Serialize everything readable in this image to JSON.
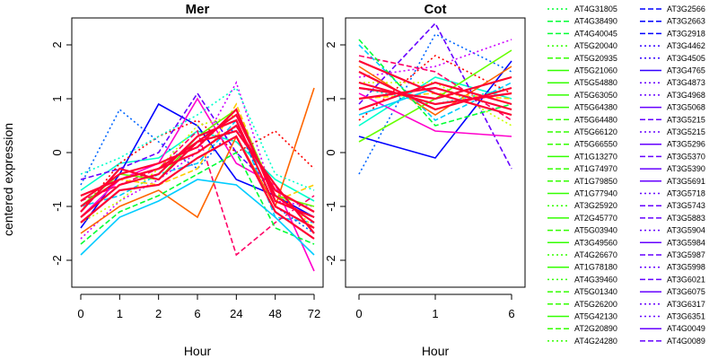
{
  "chart_data": [
    {
      "type": "line",
      "title": "Mer",
      "xlabel": "Hour",
      "ylabel": "centered expression",
      "categories": [
        "0",
        "1",
        "2",
        "6",
        "24",
        "48",
        "72"
      ],
      "yticks": [
        -2,
        -1,
        0,
        1,
        2
      ],
      "ylim": [
        -2.5,
        2.5
      ],
      "grid": false,
      "legend": "right (outside plots)",
      "palette": [
        "#ff0000",
        "#ff6600",
        "#ffcc00",
        "#ccff00",
        "#66ff00",
        "#00ff33",
        "#00ffcc",
        "#00ccff",
        "#0066ff",
        "#0000ff",
        "#6600ff",
        "#cc00ff",
        "#ff00cc",
        "#ff0066"
      ],
      "series": [
        {
          "values": [
            -1.0,
            -0.5,
            -0.3,
            0.2,
            0.7,
            -0.8,
            -1.3
          ]
        },
        {
          "values": [
            -0.9,
            -0.4,
            -0.2,
            0.1,
            0.8,
            -0.9,
            -1.2
          ]
        },
        {
          "values": [
            -1.2,
            -0.6,
            -0.4,
            0.3,
            0.6,
            -1.0,
            -1.4
          ]
        },
        {
          "values": [
            -0.8,
            -0.5,
            -0.3,
            0.0,
            0.5,
            -0.7,
            -1.1
          ]
        },
        {
          "values": [
            -1.1,
            -0.3,
            -0.5,
            0.2,
            0.4,
            -0.6,
            -1.5
          ]
        },
        {
          "values": [
            -1.3,
            -0.7,
            -0.6,
            -0.1,
            0.3,
            -1.1,
            -1.6
          ]
        },
        {
          "values": [
            -0.7,
            -0.2,
            -0.1,
            0.4,
            0.2,
            -0.5,
            -0.9
          ]
        },
        {
          "values": [
            -1.0,
            -0.8,
            -0.4,
            -0.2,
            0.6,
            -1.2,
            -1.3
          ]
        },
        {
          "values": [
            -0.6,
            0.8,
            0.2,
            -0.3,
            0.5,
            -1.0,
            -1.5
          ]
        },
        {
          "values": [
            -1.4,
            -0.4,
            0.9,
            0.5,
            -0.5,
            -0.8,
            -1.2
          ]
        },
        {
          "values": [
            -0.5,
            -0.3,
            0.0,
            1.1,
            0.0,
            -0.7,
            -1.1
          ]
        },
        {
          "values": [
            -1.6,
            -0.9,
            -0.5,
            0.0,
            1.3,
            -0.9,
            -1.0
          ]
        },
        {
          "values": [
            -1.2,
            -0.5,
            -0.2,
            1.0,
            -0.2,
            -0.6,
            -2.2
          ]
        },
        {
          "values": [
            -0.9,
            -0.6,
            -0.3,
            0.4,
            -1.9,
            -1.3,
            -0.8
          ]
        },
        {
          "values": [
            -1.1,
            -0.2,
            0.3,
            0.6,
            0.0,
            0.4,
            -0.3
          ]
        },
        {
          "values": [
            -1.5,
            -1.0,
            -0.7,
            -1.2,
            0.3,
            -1.0,
            1.2
          ]
        },
        {
          "values": [
            -0.8,
            -0.5,
            -0.6,
            -0.3,
            0.9,
            -0.9,
            -0.6
          ]
        },
        {
          "values": [
            -1.3,
            -0.9,
            -0.3,
            0.5,
            0.7,
            -0.7,
            -1.4
          ]
        },
        {
          "values": [
            -1.0,
            -0.4,
            -0.5,
            0.3,
            0.8,
            -0.8,
            -1.0
          ]
        },
        {
          "values": [
            -1.7,
            -1.1,
            -0.8,
            -0.4,
            0.0,
            -1.4,
            -1.7
          ]
        },
        {
          "values": [
            -0.4,
            -0.1,
            0.3,
            0.7,
            1.2,
            -0.4,
            -0.7
          ]
        },
        {
          "values": [
            -1.9,
            -1.2,
            -0.9,
            -0.5,
            -0.6,
            -1.2,
            -1.9
          ]
        }
      ]
    },
    {
      "type": "line",
      "title": "Cot",
      "xlabel": "Hour",
      "ylabel": "",
      "categories": [
        "0",
        "1",
        "6"
      ],
      "yticks": [
        -2,
        -1,
        0,
        1,
        2
      ],
      "ylim": [
        -2.5,
        2.5
      ],
      "grid": false,
      "palette": [
        "#ff0000",
        "#ff6600",
        "#ffcc00",
        "#ccff00",
        "#66ff00",
        "#00ff33",
        "#00ffcc",
        "#00ccff",
        "#0066ff",
        "#0000ff",
        "#6600ff",
        "#cc00ff",
        "#ff00cc",
        "#ff0066"
      ],
      "series": [
        {
          "values": [
            1.3,
            0.9,
            1.1
          ]
        },
        {
          "values": [
            1.0,
            1.2,
            0.8
          ]
        },
        {
          "values": [
            1.5,
            0.8,
            1.2
          ]
        },
        {
          "values": [
            0.8,
            1.3,
            0.9
          ]
        },
        {
          "values": [
            1.2,
            1.0,
            1.4
          ]
        },
        {
          "values": [
            1.7,
            1.1,
            0.7
          ]
        },
        {
          "values": [
            0.5,
            1.4,
            1.0
          ]
        },
        {
          "values": [
            2.0,
            0.6,
            1.3
          ]
        },
        {
          "values": [
            -0.4,
            2.2,
            1.5
          ]
        },
        {
          "values": [
            0.3,
            -0.1,
            1.7
          ]
        },
        {
          "values": [
            0.9,
            2.4,
            -0.3
          ]
        },
        {
          "values": [
            1.4,
            1.6,
            2.1
          ]
        },
        {
          "values": [
            1.1,
            0.4,
            0.3
          ]
        },
        {
          "values": [
            1.8,
            1.5,
            0.6
          ]
        },
        {
          "values": [
            0.6,
            1.8,
            1.1
          ]
        },
        {
          "values": [
            1.6,
            0.7,
            1.6
          ]
        },
        {
          "values": [
            1.0,
            1.1,
            1.0
          ]
        },
        {
          "values": [
            1.3,
            1.3,
            0.5
          ]
        },
        {
          "values": [
            0.2,
            1.0,
            1.9
          ]
        },
        {
          "values": [
            2.1,
            0.5,
            0.9
          ]
        },
        {
          "values": [
            1.2,
            0.9,
            1.2
          ]
        },
        {
          "values": [
            0.7,
            1.2,
            0.8
          ]
        }
      ]
    }
  ],
  "legend": {
    "columns": [
      [
        {
          "label": "AT4G31805",
          "color": "#00ff33",
          "dash": "dotted"
        },
        {
          "label": "AT4G38490",
          "color": "#00ff33",
          "dash": "dashed"
        },
        {
          "label": "AT4G40045",
          "color": "#00ff33",
          "dash": "dashed"
        },
        {
          "label": "AT5G20040",
          "color": "#33ff00",
          "dash": "dotted"
        },
        {
          "label": "AT5G20935",
          "color": "#33ff00",
          "dash": "dashed"
        },
        {
          "label": "AT5G21060",
          "color": "#33ff00",
          "dash": "solid"
        },
        {
          "label": "AT5G54880",
          "color": "#33ff00",
          "dash": "solid"
        },
        {
          "label": "AT5G63050",
          "color": "#33ff00",
          "dash": "solid"
        },
        {
          "label": "AT5G64380",
          "color": "#33ff00",
          "dash": "solid"
        },
        {
          "label": "AT5G64480",
          "color": "#33ff00",
          "dash": "dashed"
        },
        {
          "label": "AT5G66120",
          "color": "#33ff00",
          "dash": "dashed"
        },
        {
          "label": "AT5G66550",
          "color": "#33ff00",
          "dash": "dashed"
        },
        {
          "label": "AT1G13270",
          "color": "#33ff00",
          "dash": "solid"
        },
        {
          "label": "AT1G74970",
          "color": "#33ff00",
          "dash": "dashed"
        },
        {
          "label": "AT1G79850",
          "color": "#33ff00",
          "dash": "dashed"
        },
        {
          "label": "AT1G77940",
          "color": "#33ff00",
          "dash": "solid"
        },
        {
          "label": "AT3G25920",
          "color": "#33ff00",
          "dash": "dotted"
        },
        {
          "label": "AT2G45770",
          "color": "#33ff00",
          "dash": "solid"
        },
        {
          "label": "AT5G03940",
          "color": "#33ff00",
          "dash": "dashed"
        },
        {
          "label": "AT3G49560",
          "color": "#33ff00",
          "dash": "solid"
        },
        {
          "label": "AT4G26670",
          "color": "#33ff00",
          "dash": "dotted"
        },
        {
          "label": "AT1G78180",
          "color": "#33ff00",
          "dash": "solid"
        },
        {
          "label": "AT4G39460",
          "color": "#33ff00",
          "dash": "dotted"
        },
        {
          "label": "AT5G01340",
          "color": "#33ff00",
          "dash": "dashed"
        },
        {
          "label": "AT5G26200",
          "color": "#33ff00",
          "dash": "dashed"
        },
        {
          "label": "AT5G42130",
          "color": "#33ff00",
          "dash": "solid"
        },
        {
          "label": "AT2G20890",
          "color": "#33ff00",
          "dash": "dashed"
        },
        {
          "label": "AT4G24280",
          "color": "#33ff00",
          "dash": "dotted"
        }
      ],
      [
        {
          "label": "AT3G2566",
          "color": "#0000ff",
          "dash": "dashed"
        },
        {
          "label": "AT3G2663",
          "color": "#0000ff",
          "dash": "dashed"
        },
        {
          "label": "AT3G2918",
          "color": "#0000ff",
          "dash": "dashed"
        },
        {
          "label": "AT3G4462",
          "color": "#3300ff",
          "dash": "dotted"
        },
        {
          "label": "AT3G4505",
          "color": "#3300ff",
          "dash": "dotted"
        },
        {
          "label": "AT3G4765",
          "color": "#3300ff",
          "dash": "solid"
        },
        {
          "label": "AT3G4873",
          "color": "#6600ff",
          "dash": "dotted"
        },
        {
          "label": "AT3G4968",
          "color": "#6600ff",
          "dash": "dotted"
        },
        {
          "label": "AT3G5068",
          "color": "#6600ff",
          "dash": "solid"
        },
        {
          "label": "AT3G5215",
          "color": "#6600ff",
          "dash": "dashed"
        },
        {
          "label": "AT3G5215",
          "color": "#6600ff",
          "dash": "dotted"
        },
        {
          "label": "AT3G5296",
          "color": "#6600ff",
          "dash": "solid"
        },
        {
          "label": "AT3G5370",
          "color": "#6600ff",
          "dash": "dashed"
        },
        {
          "label": "AT3G5390",
          "color": "#6600ff",
          "dash": "solid"
        },
        {
          "label": "AT3G5691",
          "color": "#6600ff",
          "dash": "solid"
        },
        {
          "label": "AT3G5718",
          "color": "#6600ff",
          "dash": "dotted"
        },
        {
          "label": "AT3G5743",
          "color": "#6600ff",
          "dash": "dashed"
        },
        {
          "label": "AT3G5883",
          "color": "#6600ff",
          "dash": "dashed"
        },
        {
          "label": "AT3G5904",
          "color": "#6600ff",
          "dash": "dotted"
        },
        {
          "label": "AT3G5984",
          "color": "#6600ff",
          "dash": "solid"
        },
        {
          "label": "AT3G5987",
          "color": "#6600ff",
          "dash": "dashed"
        },
        {
          "label": "AT3G5998",
          "color": "#6600ff",
          "dash": "dotted"
        },
        {
          "label": "AT3G6021",
          "color": "#6600ff",
          "dash": "dashed"
        },
        {
          "label": "AT3G6075",
          "color": "#6600ff",
          "dash": "solid"
        },
        {
          "label": "AT3G6317",
          "color": "#6600ff",
          "dash": "dotted"
        },
        {
          "label": "AT3G6351",
          "color": "#6600ff",
          "dash": "dotted"
        },
        {
          "label": "AT4G0049",
          "color": "#6600ff",
          "dash": "solid"
        },
        {
          "label": "AT4G0089",
          "color": "#6600ff",
          "dash": "dashed"
        }
      ]
    ]
  }
}
